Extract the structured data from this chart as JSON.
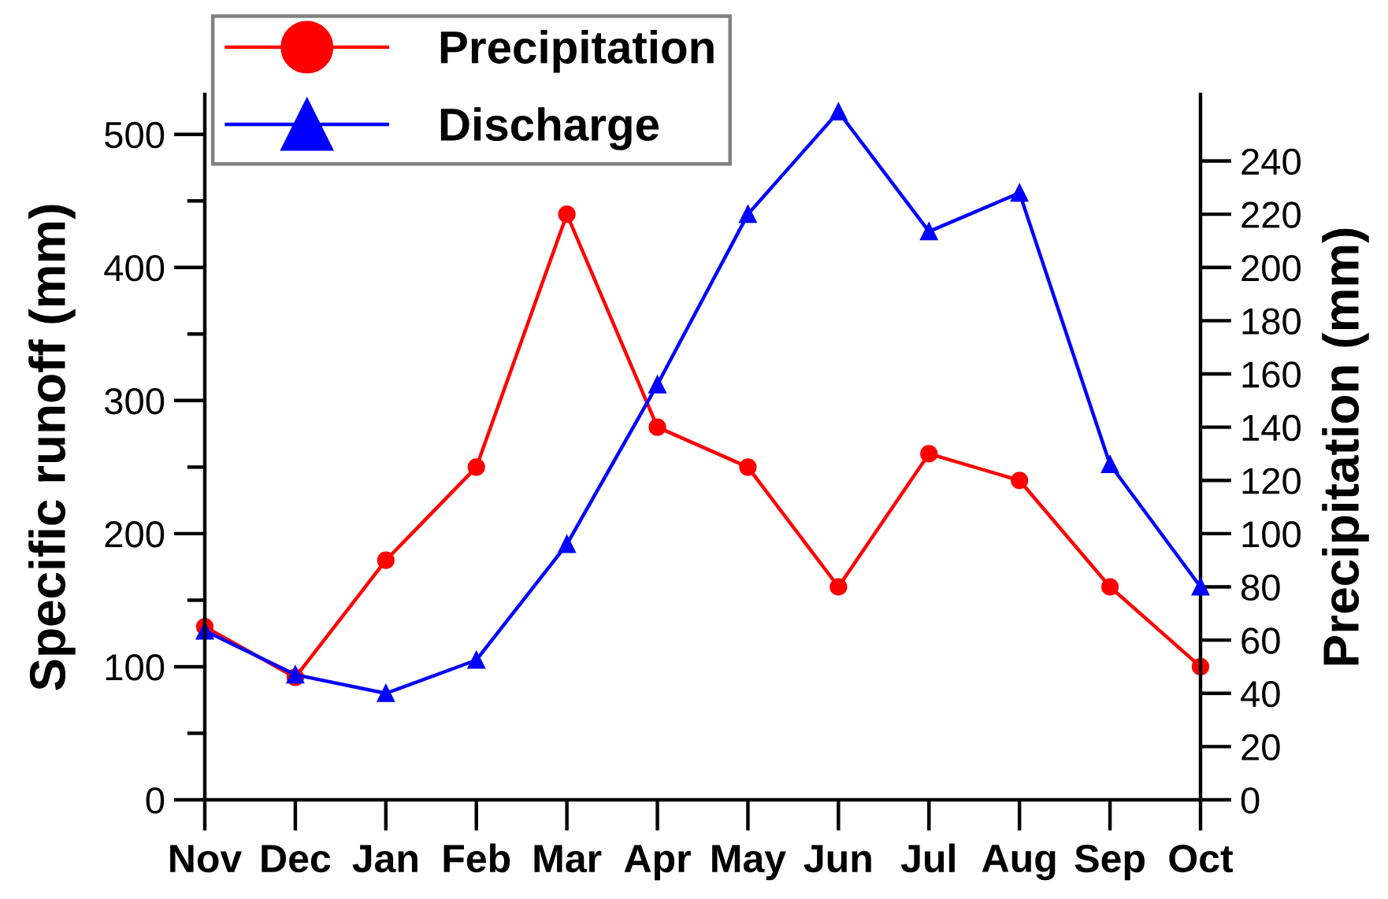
{
  "chart_data": {
    "type": "line",
    "ylabel": "Specific runoff (mm)",
    "y2label": "Precipitation (mm)",
    "categories": [
      "Nov",
      "Dec",
      "Jan",
      "Feb",
      "Mar",
      "Apr",
      "May",
      "Jun",
      "Jul",
      "Aug",
      "Sep",
      "Oct"
    ],
    "series": [
      {
        "name": "Precipitation",
        "color": "#ff0000",
        "marker": "circle",
        "axis": "y2",
        "values": [
          65,
          46,
          90,
          125,
          220,
          140,
          125,
          80,
          130,
          120,
          80,
          50
        ]
      },
      {
        "name": "Discharge",
        "color": "#0000ff",
        "marker": "triangle",
        "values": [
          127,
          94,
          80,
          105,
          192,
          312,
          440,
          517,
          427,
          456,
          252,
          160
        ]
      }
    ],
    "ylim": [
      0,
      530
    ],
    "yticks": [
      0,
      {
        "value": 50,
        "label": null
      },
      100,
      {
        "value": 150,
        "label": null
      },
      200,
      {
        "value": 250,
        "label": null
      },
      300,
      {
        "value": 350,
        "label": null
      },
      400,
      {
        "value": 450,
        "label": null
      },
      500
    ],
    "y2lim": [
      0,
      265
    ],
    "y2ticks": [
      0,
      20,
      40,
      60,
      80,
      100,
      120,
      140,
      160,
      180,
      200,
      220,
      240
    ],
    "legend": "top left"
  }
}
